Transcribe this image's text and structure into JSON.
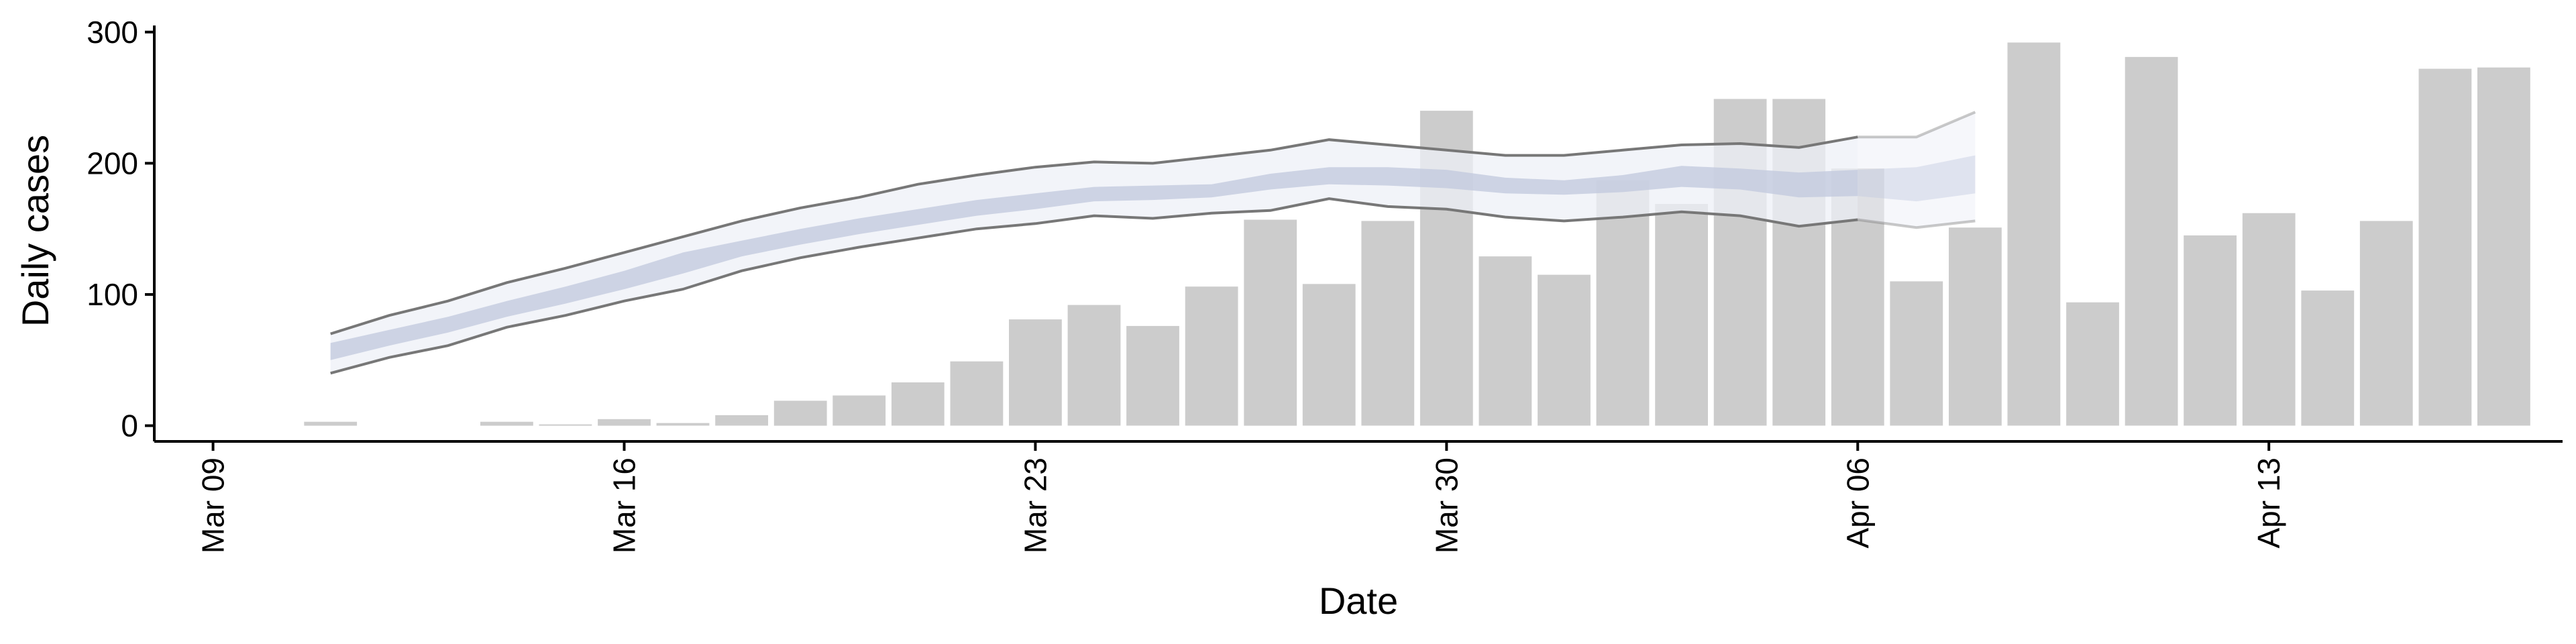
{
  "chart_data": {
    "type": "bar",
    "xlabel": "Date",
    "ylabel": "Daily cases",
    "ylim": [
      -12,
      305
    ],
    "yticks": [
      0,
      100,
      200,
      300
    ],
    "xlim": [
      "2020-03-08",
      "2020-04-18"
    ],
    "xticks": [
      {
        "date": "2020-03-09",
        "label": "Mar 09"
      },
      {
        "date": "2020-03-16",
        "label": "Mar 16"
      },
      {
        "date": "2020-03-23",
        "label": "Mar 23"
      },
      {
        "date": "2020-03-30",
        "label": "Mar 30"
      },
      {
        "date": "2020-04-06",
        "label": "Apr 06"
      },
      {
        "date": "2020-04-13",
        "label": "Apr 13"
      }
    ],
    "grid": false,
    "colors": {
      "bars": "#cccccc",
      "band_outer": "#eef0f7",
      "band_inner": "#c3cadf",
      "bound_lines": "#777777"
    },
    "bars": [
      {
        "date": "2020-03-11",
        "value": 3
      },
      {
        "date": "2020-03-14",
        "value": 3
      },
      {
        "date": "2020-03-15",
        "value": 1
      },
      {
        "date": "2020-03-16",
        "value": 5
      },
      {
        "date": "2020-03-17",
        "value": 2
      },
      {
        "date": "2020-03-18",
        "value": 8
      },
      {
        "date": "2020-03-19",
        "value": 19
      },
      {
        "date": "2020-03-20",
        "value": 23
      },
      {
        "date": "2020-03-21",
        "value": 33
      },
      {
        "date": "2020-03-22",
        "value": 49
      },
      {
        "date": "2020-03-23",
        "value": 81
      },
      {
        "date": "2020-03-24",
        "value": 92
      },
      {
        "date": "2020-03-25",
        "value": 76
      },
      {
        "date": "2020-03-26",
        "value": 106
      },
      {
        "date": "2020-03-27",
        "value": 157
      },
      {
        "date": "2020-03-28",
        "value": 108
      },
      {
        "date": "2020-03-29",
        "value": 156
      },
      {
        "date": "2020-03-30",
        "value": 240
      },
      {
        "date": "2020-03-31",
        "value": 129
      },
      {
        "date": "2020-04-01",
        "value": 115
      },
      {
        "date": "2020-04-02",
        "value": 187
      },
      {
        "date": "2020-04-03",
        "value": 169
      },
      {
        "date": "2020-04-04",
        "value": 249
      },
      {
        "date": "2020-04-05",
        "value": 249
      },
      {
        "date": "2020-04-06",
        "value": 196
      },
      {
        "date": "2020-04-07",
        "value": 110
      },
      {
        "date": "2020-04-08",
        "value": 151
      },
      {
        "date": "2020-04-09",
        "value": 292
      },
      {
        "date": "2020-04-10",
        "value": 94
      },
      {
        "date": "2020-04-11",
        "value": 281
      },
      {
        "date": "2020-04-12",
        "value": 145
      },
      {
        "date": "2020-04-13",
        "value": 162
      },
      {
        "date": "2020-04-14",
        "value": 103
      },
      {
        "date": "2020-04-15",
        "value": 156
      },
      {
        "date": "2020-04-16",
        "value": 272
      },
      {
        "date": "2020-04-17",
        "value": 273
      }
    ],
    "band": {
      "dates": [
        "2020-03-11",
        "2020-03-12",
        "2020-03-13",
        "2020-03-14",
        "2020-03-15",
        "2020-03-16",
        "2020-03-17",
        "2020-03-18",
        "2020-03-19",
        "2020-03-20",
        "2020-03-21",
        "2020-03-22",
        "2020-03-23",
        "2020-03-24",
        "2020-03-25",
        "2020-03-26",
        "2020-03-27",
        "2020-03-28",
        "2020-03-29",
        "2020-03-30",
        "2020-03-31",
        "2020-04-01",
        "2020-04-02",
        "2020-04-03",
        "2020-04-04",
        "2020-04-05",
        "2020-04-06",
        "2020-04-07",
        "2020-04-08"
      ],
      "lower": [
        40,
        52,
        61,
        75,
        84,
        95,
        104,
        118,
        128,
        136,
        143,
        150,
        154,
        160,
        158,
        162,
        164,
        173,
        167,
        165,
        159,
        156,
        159,
        163,
        160,
        152,
        157,
        151,
        156
      ],
      "upper": [
        70,
        84,
        95,
        109,
        120,
        132,
        144,
        156,
        166,
        174,
        184,
        191,
        197,
        201,
        200,
        205,
        210,
        218,
        214,
        210,
        206,
        206,
        210,
        214,
        215,
        212,
        220,
        220,
        239
      ],
      "inner_lower": [
        50,
        61,
        71,
        83,
        93,
        104,
        116,
        129,
        138,
        146,
        153,
        160,
        165,
        171,
        172,
        174,
        180,
        184,
        183,
        181,
        177,
        176,
        178,
        182,
        180,
        174,
        175,
        171,
        177
      ],
      "inner_upper": [
        63,
        73,
        83,
        95,
        106,
        118,
        132,
        141,
        150,
        158,
        165,
        172,
        177,
        182,
        183,
        184,
        192,
        197,
        197,
        195,
        189,
        187,
        191,
        198,
        196,
        193,
        195,
        197,
        206
      ],
      "projected_from": "2020-04-06"
    }
  }
}
